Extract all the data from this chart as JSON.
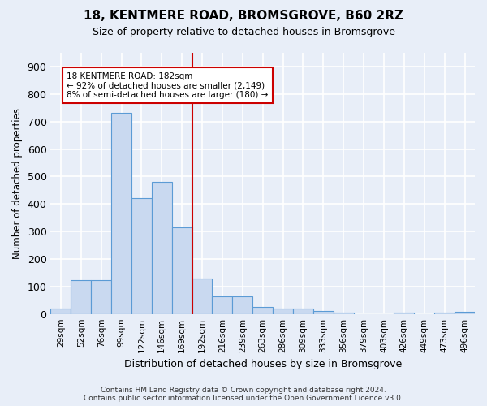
{
  "title": "18, KENTMERE ROAD, BROMSGROVE, B60 2RZ",
  "subtitle": "Size of property relative to detached houses in Bromsgrove",
  "xlabel": "Distribution of detached houses by size in Bromsgrove",
  "ylabel": "Number of detached properties",
  "bar_labels": [
    "29sqm",
    "52sqm",
    "76sqm",
    "99sqm",
    "122sqm",
    "146sqm",
    "169sqm",
    "192sqm",
    "216sqm",
    "239sqm",
    "263sqm",
    "286sqm",
    "309sqm",
    "333sqm",
    "356sqm",
    "379sqm",
    "403sqm",
    "426sqm",
    "449sqm",
    "473sqm",
    "496sqm"
  ],
  "bar_values": [
    20,
    122,
    122,
    730,
    420,
    480,
    315,
    130,
    65,
    65,
    25,
    20,
    20,
    10,
    5,
    0,
    0,
    5,
    0,
    5,
    8
  ],
  "bar_color": "#c9d9f0",
  "bar_edge_color": "#5b9bd5",
  "vline_color": "#cc0000",
  "annotation_text": "18 KENTMERE ROAD: 182sqm\n← 92% of detached houses are smaller (2,149)\n8% of semi-detached houses are larger (180) →",
  "annotation_box_color": "#ffffff",
  "annotation_box_edge": "#cc0000",
  "ylim": [
    0,
    950
  ],
  "yticks": [
    0,
    100,
    200,
    300,
    400,
    500,
    600,
    700,
    800,
    900
  ],
  "background_color": "#e8eef8",
  "grid_color": "#ffffff",
  "footer_line1": "Contains HM Land Registry data © Crown copyright and database right 2024.",
  "footer_line2": "Contains public sector information licensed under the Open Government Licence v3.0."
}
